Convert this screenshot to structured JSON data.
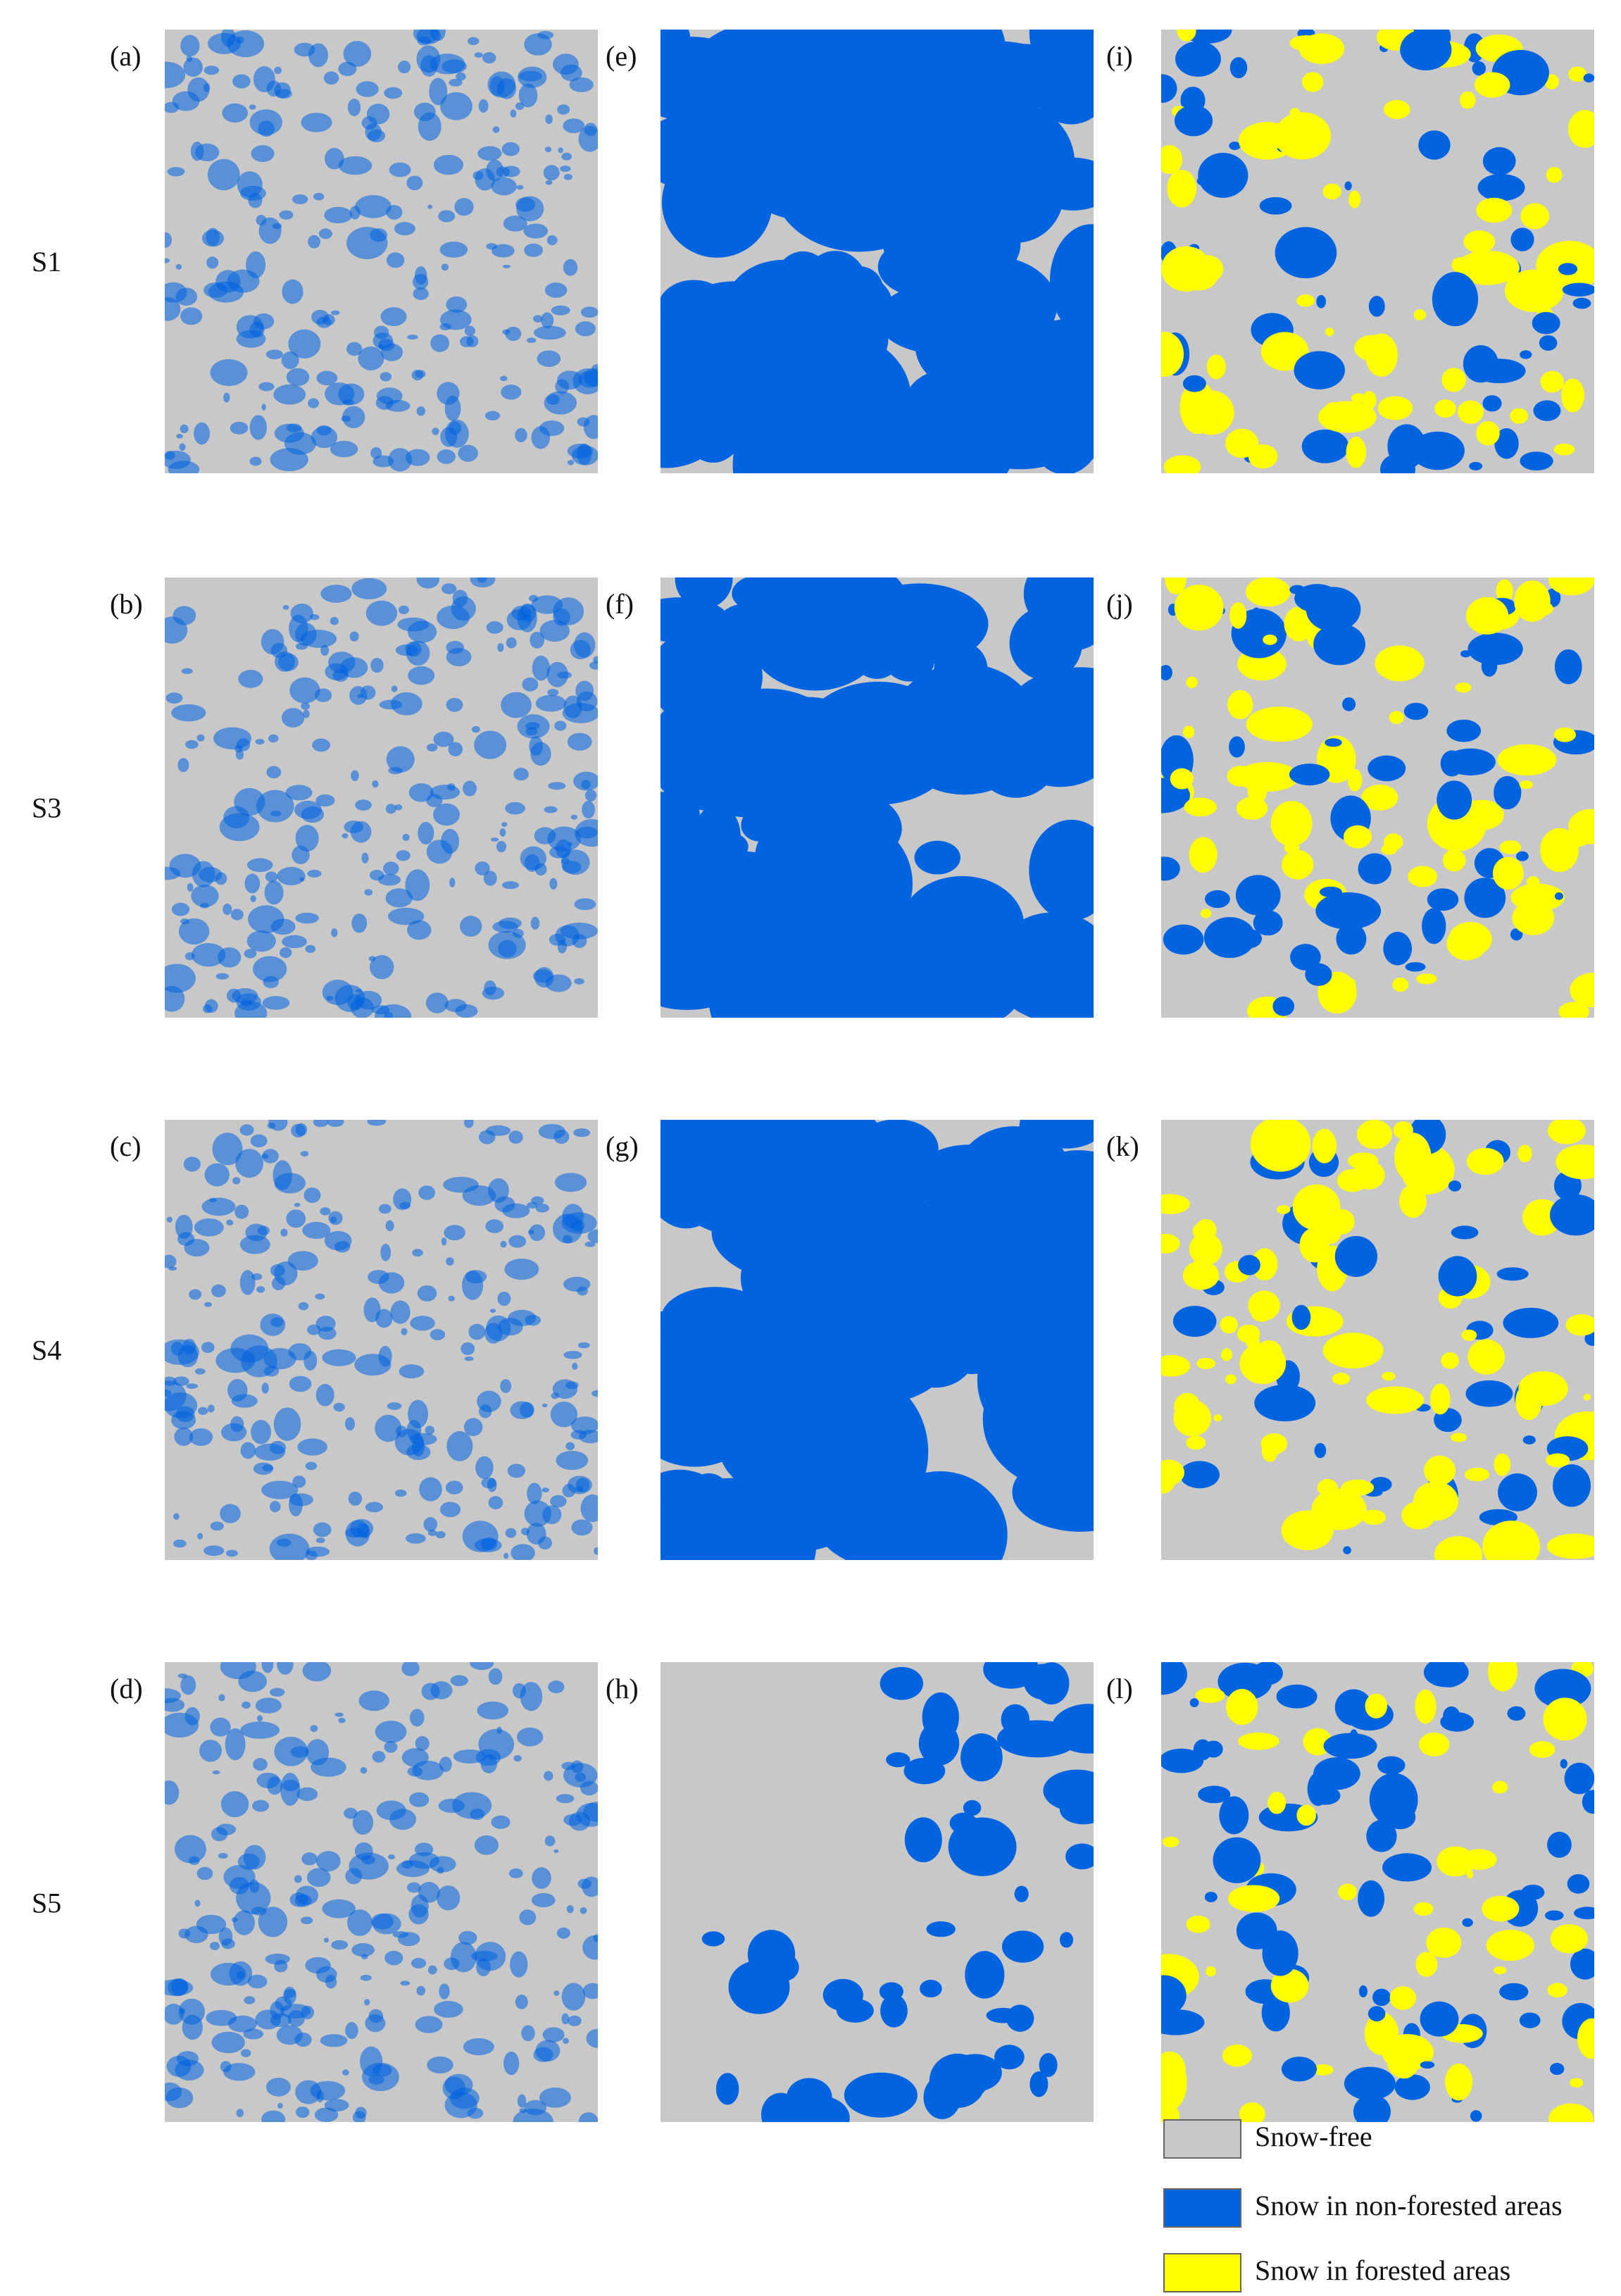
{
  "rows": [
    {
      "label": "S1",
      "panels": [
        "(a)",
        "(e)",
        "(i)"
      ]
    },
    {
      "label": "S3",
      "panels": [
        "(b)",
        "(f)",
        "(j)"
      ]
    },
    {
      "label": "S4",
      "panels": [
        "(c)",
        "(g)",
        "(k)"
      ]
    },
    {
      "label": "S5",
      "panels": [
        "(d)",
        "(h)",
        "(l)"
      ]
    }
  ],
  "legend": [
    {
      "label": "Snow-free",
      "color": "#c8c8c8"
    },
    {
      "label": "Snow in non-forested areas",
      "color": "#0063e0"
    },
    {
      "label": "Snow in forested areas",
      "color": "#ffff00"
    }
  ]
}
